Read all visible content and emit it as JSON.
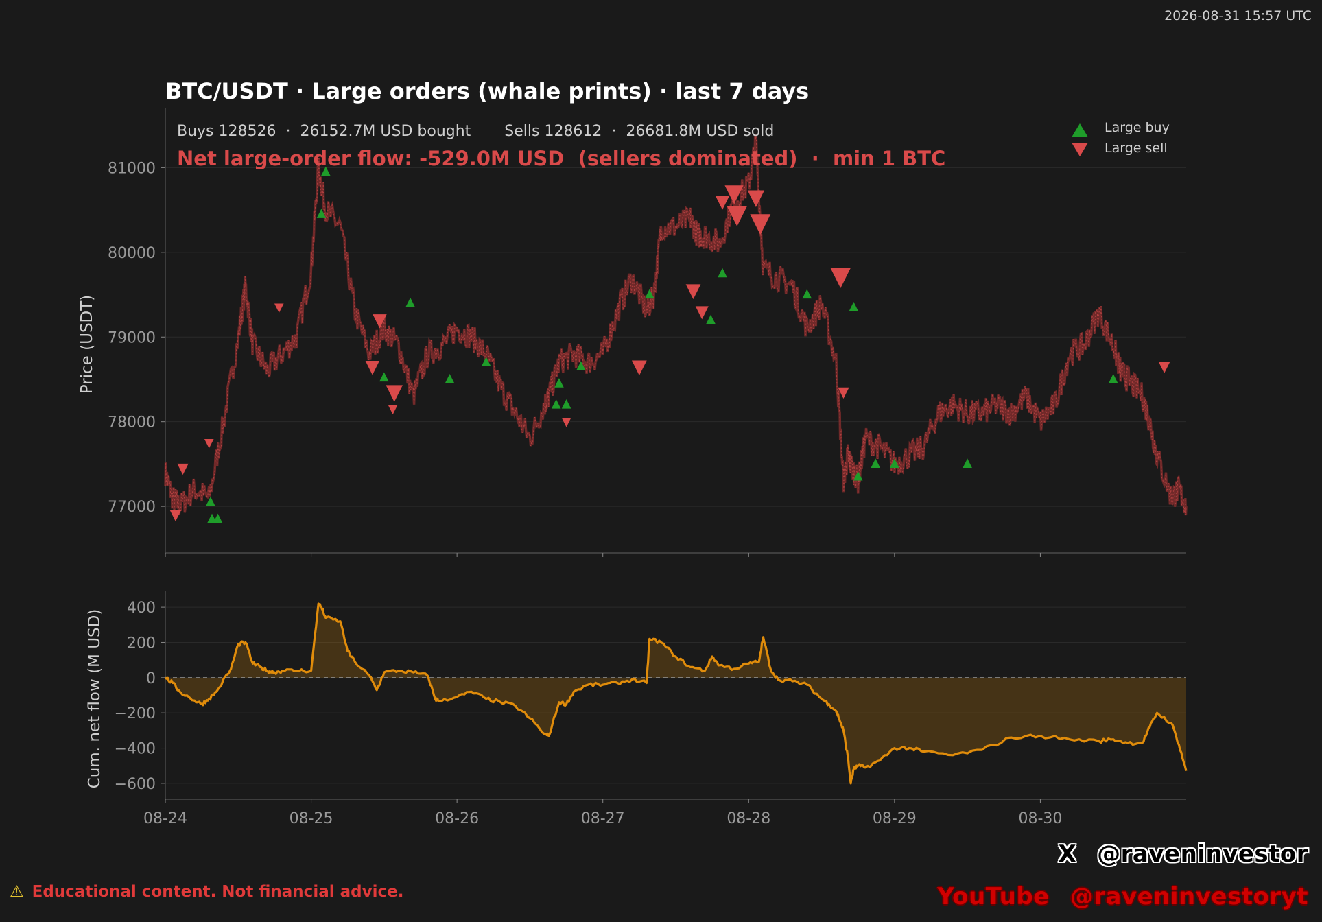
{
  "timestamp": "2026-08-31 15:57 UTC",
  "disclaimer": {
    "icon": "warning-icon",
    "text": "Educational content. Not financial advice."
  },
  "social": {
    "x_label": "X",
    "x_handle": "@raveninvestor",
    "yt_label": "YouTube",
    "yt_handle": "@raveninvestoryt"
  },
  "colors": {
    "background": "#1a1a1a",
    "buy": "#1f9d2a",
    "sell": "#d94a4a",
    "flow": "#e08c0b",
    "headline": "#d94a4a"
  },
  "chart_data": [
    {
      "type": "scatter",
      "title": "BTC/USDT · Large orders (whale prints) · last 7 days",
      "summary": "Buys 128526  ·  26152.7M USD bought       Sells 128612  ·  26681.8M USD sold",
      "headline": "Net large-order flow: -529.0M USD  (sellers dominated)  ·  min 1 BTC",
      "ylabel": "Price (USDT)",
      "ylim": [
        76450,
        81700
      ],
      "yticks": [
        77000,
        78000,
        79000,
        80000,
        81000
      ],
      "xlim": [
        "08-24 00:00",
        "08-31 00:00"
      ],
      "xticks": [
        "08-24",
        "08-25",
        "08-26",
        "08-27",
        "08-28",
        "08-29",
        "08-30"
      ],
      "legend": {
        "placement": "top-right",
        "entries": [
          {
            "name": "Large buy",
            "marker": "triangle-up"
          },
          {
            "name": "Large sell",
            "marker": "triangle-down"
          }
        ]
      },
      "grid": true,
      "price_path": {
        "x_days": [
          0,
          0.05,
          0.1,
          0.2,
          0.3,
          0.4,
          0.5,
          0.55,
          0.6,
          0.7,
          0.8,
          0.9,
          1.0,
          1.05,
          1.1,
          1.2,
          1.3,
          1.4,
          1.5,
          1.6,
          1.7,
          1.8,
          1.9,
          2.0,
          2.1,
          2.2,
          2.3,
          2.4,
          2.5,
          2.6,
          2.63,
          2.7,
          2.8,
          2.9,
          3.0,
          3.1,
          3.2,
          3.3,
          3.35,
          3.4,
          3.5,
          3.6,
          3.65,
          3.7,
          3.8,
          3.9,
          4.0,
          4.05,
          4.1,
          4.2,
          4.3,
          4.4,
          4.5,
          4.6,
          4.65,
          4.68,
          4.7,
          4.75,
          4.8,
          4.9,
          5.0,
          5.1,
          5.2,
          5.3,
          5.4,
          5.5,
          5.6,
          5.7,
          5.8,
          5.9,
          6.0,
          6.1,
          6.2,
          6.3,
          6.4,
          6.5,
          6.55,
          6.6,
          6.7,
          6.75,
          6.8,
          6.9,
          6.95,
          7.0
        ],
        "price": [
          77400,
          77100,
          77000,
          77200,
          77100,
          78000,
          79000,
          79600,
          78900,
          78600,
          78800,
          79000,
          79800,
          81000,
          80500,
          80300,
          79300,
          78800,
          79100,
          78900,
          78300,
          78800,
          78900,
          79100,
          79000,
          78800,
          78400,
          78100,
          77800,
          78200,
          78300,
          78700,
          78800,
          78700,
          78800,
          79300,
          79700,
          79300,
          79500,
          80300,
          80300,
          80400,
          80200,
          80200,
          80100,
          80600,
          80800,
          81300,
          79800,
          79700,
          79600,
          79100,
          79400,
          78700,
          77300,
          77600,
          77500,
          77300,
          77800,
          77700,
          77500,
          77600,
          77700,
          78100,
          78200,
          78100,
          78100,
          78200,
          78100,
          78300,
          78000,
          78200,
          78800,
          78900,
          79300,
          78900,
          78600,
          78500,
          78300,
          78000,
          77600,
          77100,
          77200,
          77000
        ]
      },
      "large_buy_markers": [
        {
          "x_days": 0.32,
          "price": 76850
        },
        {
          "x_days": 0.36,
          "price": 76850
        },
        {
          "x_days": 0.31,
          "price": 77050
        },
        {
          "x_days": 1.07,
          "price": 80450
        },
        {
          "x_days": 1.1,
          "price": 80950
        },
        {
          "x_days": 1.68,
          "price": 79400
        },
        {
          "x_days": 1.5,
          "price": 78520
        },
        {
          "x_days": 2.7,
          "price": 78450
        },
        {
          "x_days": 2.68,
          "price": 78200
        },
        {
          "x_days": 2.75,
          "price": 78200
        },
        {
          "x_days": 2.85,
          "price": 78650
        },
        {
          "x_days": 3.32,
          "price": 79500
        },
        {
          "x_days": 3.74,
          "price": 79200
        },
        {
          "x_days": 3.82,
          "price": 79750
        },
        {
          "x_days": 4.4,
          "price": 79500
        },
        {
          "x_days": 4.72,
          "price": 79350
        },
        {
          "x_days": 4.75,
          "price": 77350
        },
        {
          "x_days": 4.87,
          "price": 77500
        },
        {
          "x_days": 5.0,
          "price": 77500
        },
        {
          "x_days": 5.5,
          "price": 77500
        },
        {
          "x_days": 6.5,
          "price": 78500
        },
        {
          "x_days": 1.95,
          "price": 78500
        },
        {
          "x_days": 2.2,
          "price": 78700
        }
      ],
      "large_sell_markers": [
        {
          "x_days": 0.07,
          "price": 76900,
          "size": 1.2
        },
        {
          "x_days": 0.12,
          "price": 77450,
          "size": 1.2
        },
        {
          "x_days": 0.3,
          "price": 77750,
          "size": 1.0
        },
        {
          "x_days": 0.78,
          "price": 79350,
          "size": 1.0
        },
        {
          "x_days": 1.42,
          "price": 78650,
          "size": 1.5
        },
        {
          "x_days": 1.47,
          "price": 79200,
          "size": 1.5
        },
        {
          "x_days": 1.57,
          "price": 78350,
          "size": 1.8
        },
        {
          "x_days": 1.56,
          "price": 78150,
          "size": 1.0
        },
        {
          "x_days": 2.75,
          "price": 78000,
          "size": 1.0
        },
        {
          "x_days": 3.25,
          "price": 78650,
          "size": 1.6
        },
        {
          "x_days": 3.62,
          "price": 79550,
          "size": 1.6
        },
        {
          "x_days": 3.68,
          "price": 79300,
          "size": 1.4
        },
        {
          "x_days": 3.82,
          "price": 80600,
          "size": 1.5
        },
        {
          "x_days": 3.9,
          "price": 80700,
          "size": 2.0
        },
        {
          "x_days": 3.92,
          "price": 80450,
          "size": 2.2
        },
        {
          "x_days": 4.05,
          "price": 80650,
          "size": 1.8
        },
        {
          "x_days": 4.08,
          "price": 80350,
          "size": 2.2
        },
        {
          "x_days": 4.63,
          "price": 79720,
          "size": 2.2
        },
        {
          "x_days": 4.65,
          "price": 78350,
          "size": 1.2
        },
        {
          "x_days": 6.85,
          "price": 78650,
          "size": 1.2
        }
      ]
    },
    {
      "type": "area",
      "ylabel": "Cum. net flow (M USD)",
      "ylim": [
        -690,
        490
      ],
      "yticks": [
        -600,
        -400,
        -200,
        0,
        200,
        400
      ],
      "xlim": [
        "08-24 00:00",
        "08-31 00:00"
      ],
      "xticks": [
        "08-24",
        "08-25",
        "08-26",
        "08-27",
        "08-28",
        "08-29",
        "08-30"
      ],
      "zero_line": true,
      "series": [
        {
          "x_days": [
            0,
            0.05,
            0.1,
            0.2,
            0.25,
            0.3,
            0.35,
            0.45,
            0.5,
            0.55,
            0.6,
            0.65,
            0.7,
            0.75,
            0.8,
            0.9,
            1.0,
            1.05,
            1.07,
            1.1,
            1.2,
            1.25,
            1.3,
            1.4,
            1.45,
            1.5,
            1.6,
            1.7,
            1.8,
            1.85,
            1.87,
            2.0,
            2.1,
            2.2,
            2.3,
            2.4,
            2.5,
            2.6,
            2.63,
            2.7,
            2.75,
            2.8,
            2.9,
            3.0,
            3.1,
            3.2,
            3.3,
            3.32,
            3.4,
            3.5,
            3.6,
            3.7,
            3.75,
            3.8,
            3.9,
            4.0,
            4.07,
            4.1,
            4.15,
            4.2,
            4.3,
            4.4,
            4.5,
            4.55,
            4.6,
            4.62,
            4.65,
            4.68,
            4.7,
            4.72,
            4.75,
            4.8,
            4.9,
            5.0,
            5.1,
            5.2,
            5.4,
            5.6,
            5.8,
            6.0,
            6.2,
            6.4,
            6.5,
            6.6,
            6.7,
            6.75,
            6.8,
            6.9,
            6.95,
            7.0
          ],
          "values": [
            0,
            -30,
            -80,
            -130,
            -150,
            -120,
            -80,
            50,
            190,
            200,
            80,
            60,
            40,
            30,
            40,
            40,
            40,
            420,
            400,
            340,
            320,
            150,
            90,
            10,
            -70,
            30,
            40,
            30,
            10,
            -120,
            -130,
            -110,
            -80,
            -120,
            -140,
            -160,
            -230,
            -320,
            -330,
            -140,
            -150,
            -80,
            -40,
            -40,
            -30,
            -10,
            -30,
            220,
            200,
            120,
            60,
            40,
            120,
            70,
            50,
            80,
            90,
            230,
            50,
            -10,
            -20,
            -40,
            -120,
            -150,
            -190,
            -230,
            -300,
            -450,
            -600,
            -520,
            -500,
            -510,
            -470,
            -400,
            -400,
            -420,
            -440,
            -410,
            -340,
            -330,
            -350,
            -360,
            -350,
            -370,
            -370,
            -280,
            -200,
            -260,
            -380,
            -529
          ]
        }
      ]
    }
  ]
}
